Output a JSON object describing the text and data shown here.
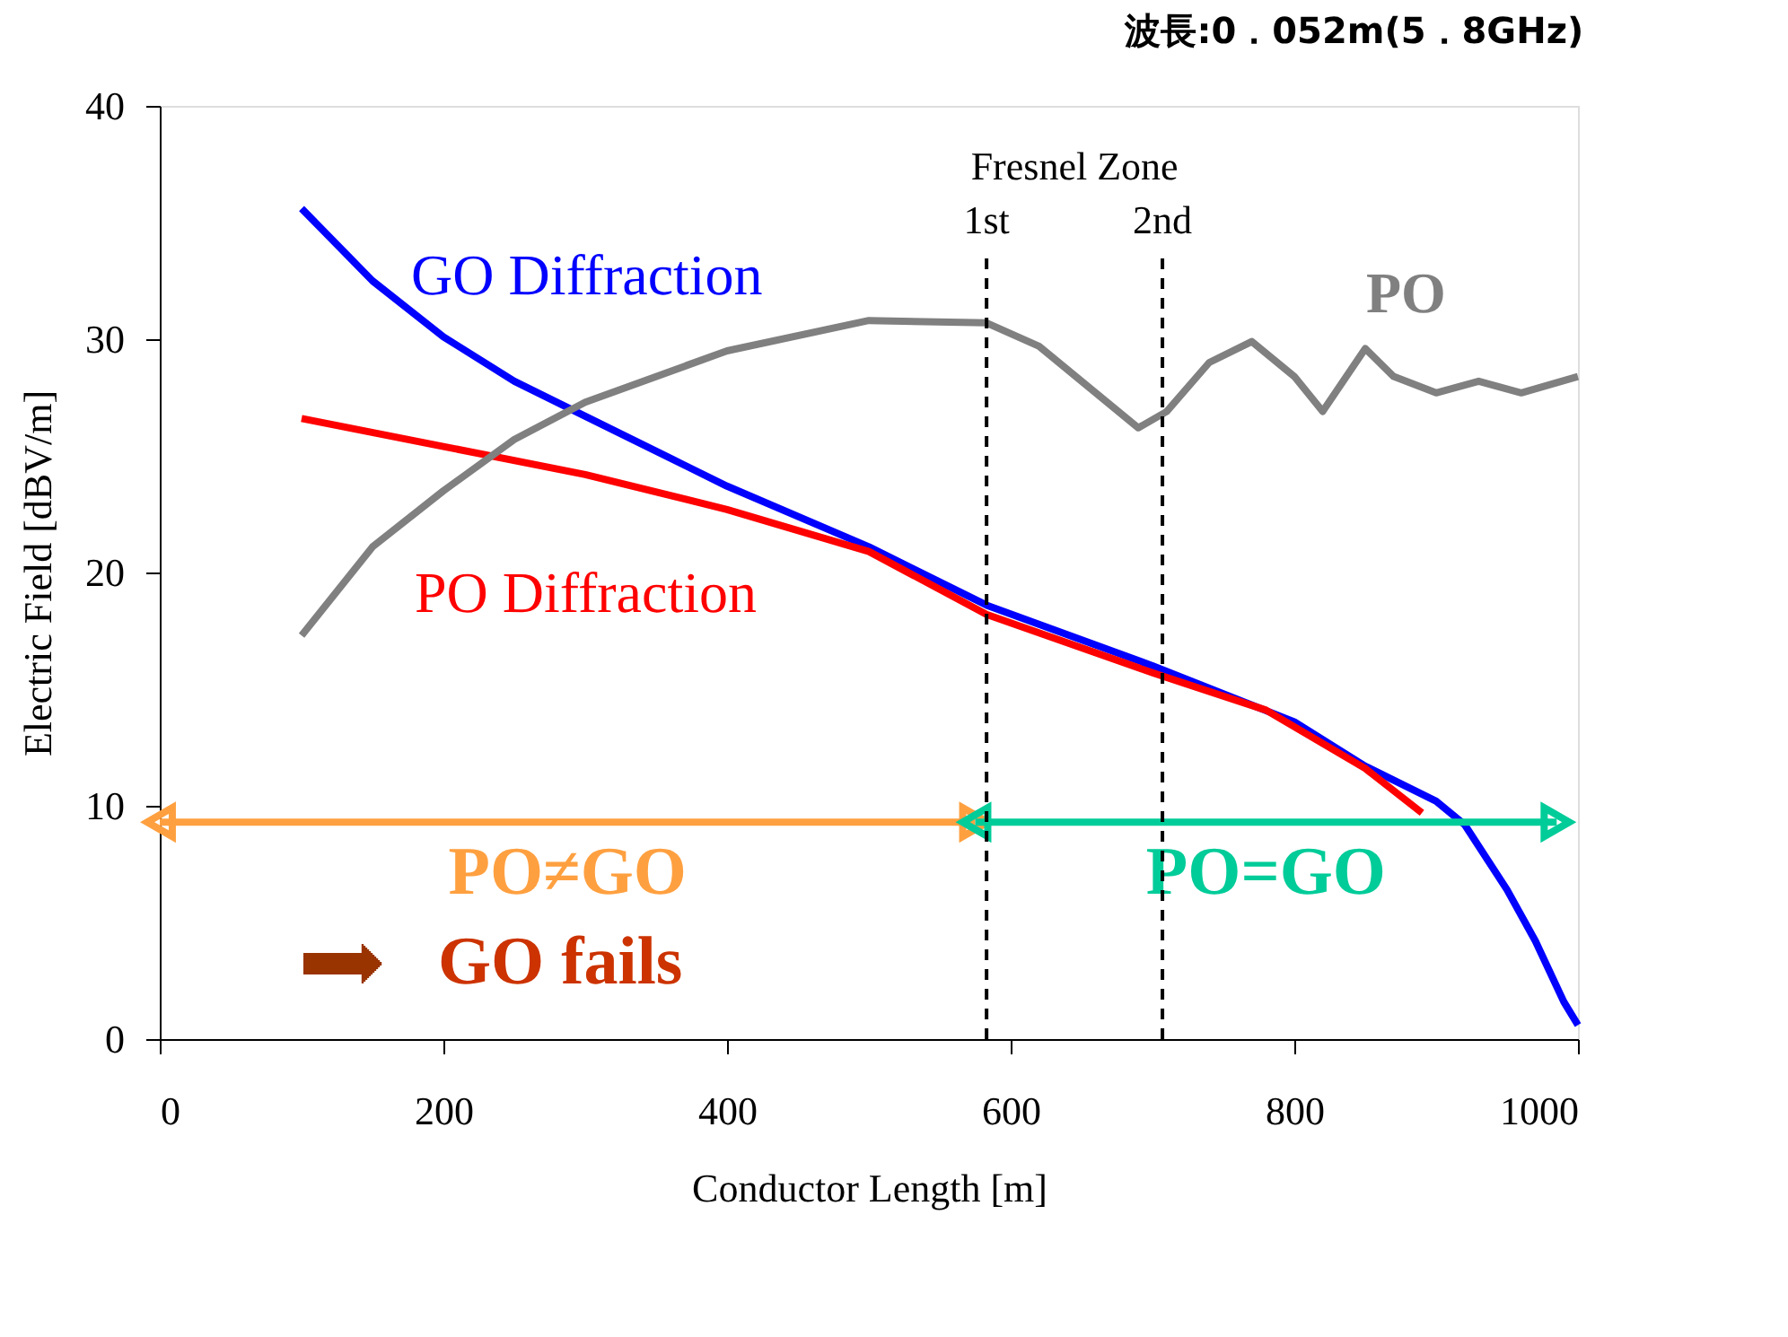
{
  "chart_data": {
    "type": "line",
    "title": "波長:0．052m(5．8GHz)",
    "xlabel": "Conductor Length [m]",
    "ylabel": "Electric Field [dBV/m]",
    "xlim": [
      0,
      1000
    ],
    "ylim": [
      0,
      40
    ],
    "xticks": [
      0,
      200,
      400,
      600,
      800,
      1000
    ],
    "yticks": [
      0,
      10,
      20,
      30,
      40
    ],
    "grid": false,
    "legend": false,
    "marker": "none",
    "line_style": "solid",
    "series": [
      {
        "name": "GO Diffraction",
        "color": "#0000ff",
        "x": [
          100,
          150,
          200,
          250,
          300,
          400,
          500,
          583,
          700,
          800,
          850,
          900,
          920,
          950,
          970,
          990,
          1000
        ],
        "values": [
          35.6,
          32.5,
          30.1,
          28.2,
          26.7,
          23.7,
          21.1,
          18.6,
          16.0,
          13.6,
          11.7,
          10.2,
          9.2,
          6.4,
          4.2,
          1.6,
          0.6
        ]
      },
      {
        "name": "PO Diffraction",
        "color": "#ff0000",
        "x": [
          100,
          200,
          300,
          400,
          500,
          583,
          700,
          780,
          850,
          890
        ],
        "values": [
          26.6,
          25.4,
          24.2,
          22.7,
          20.9,
          18.2,
          15.7,
          14.1,
          11.6,
          9.7
        ]
      },
      {
        "name": "PO",
        "color": "#808080",
        "x": [
          100,
          150,
          200,
          250,
          300,
          400,
          500,
          583,
          620,
          660,
          690,
          710,
          740,
          770,
          800,
          820,
          850,
          870,
          900,
          930,
          960,
          1000
        ],
        "values": [
          17.3,
          21.1,
          23.5,
          25.7,
          27.3,
          29.5,
          30.8,
          30.7,
          29.7,
          27.7,
          26.2,
          26.9,
          29.0,
          29.9,
          28.4,
          26.9,
          29.6,
          28.4,
          27.7,
          28.2,
          27.7,
          28.4
        ]
      },
      {
        "name": "PO≠GO",
        "color": "#ffa040",
        "marker": "triangle",
        "x": [
          0,
          575
        ],
        "values": [
          9.3,
          9.3
        ]
      },
      {
        "name": "PO=GO",
        "color": "#00cc99",
        "marker": "triangle",
        "x": [
          575,
          985
        ],
        "values": [
          9.3,
          9.3
        ]
      }
    ],
    "ref_lines": [
      {
        "axis": "x",
        "value": 583,
        "label": "1st",
        "color": "#000000",
        "line_style": "dashed"
      },
      {
        "axis": "x",
        "value": 707,
        "label": "2nd",
        "color": "#000000",
        "line_style": "dashed"
      }
    ],
    "annotations": [
      "Fresnel Zone",
      "GO fails"
    ]
  }
}
